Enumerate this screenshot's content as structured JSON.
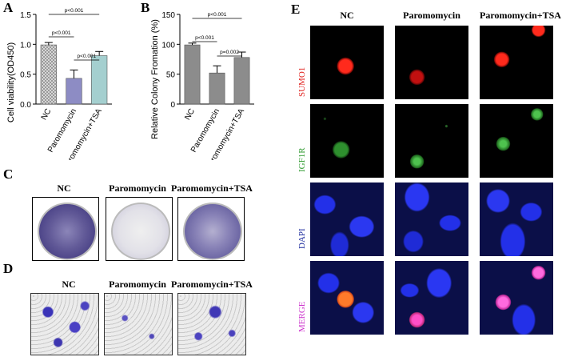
{
  "panels": {
    "A": "A",
    "B": "B",
    "C": "C",
    "D": "D",
    "E": "E"
  },
  "chartA": {
    "chart_data": {
      "type": "bar",
      "categories": [
        "NC",
        "Paromomycin",
        "Paromomycin+TSA"
      ],
      "values": [
        0.99,
        0.43,
        0.81
      ],
      "errors": [
        0.04,
        0.14,
        0.07
      ],
      "ylabel": "Cell viability(OD450)",
      "ylim": [
        0,
        1.5
      ],
      "yticks": [
        "0.0",
        "0.5",
        "1.0",
        "1.5"
      ],
      "tickvals": [
        0,
        0.5,
        1.0,
        1.5
      ],
      "colors": [
        "#bdbdbd",
        "#8d8cc4",
        "#a4cfcf"
      ],
      "pvalues": [
        "p<0.001",
        "p<0.001",
        "p<0.001"
      ]
    }
  },
  "chartB": {
    "chart_data": {
      "type": "bar",
      "categories": [
        "NC",
        "Paromomycin",
        "Paromomycin+TSA"
      ],
      "values": [
        99,
        52,
        78
      ],
      "errors": [
        3,
        12,
        9
      ],
      "ylabel": "Relative Colony Fromation (%)",
      "ylim": [
        0,
        150
      ],
      "yticks": [
        "0",
        "50",
        "100",
        "150"
      ],
      "tickvals": [
        0,
        50,
        100,
        150
      ],
      "colors": [
        "#8c8c8c",
        "#8c8c8c",
        "#8c8c8c"
      ],
      "pvalues": [
        "p<0.001",
        "p<0.001",
        "p=0.002"
      ]
    }
  },
  "panelC": {
    "labels": [
      "NC",
      "Paromomycin",
      "Paromomycin+TSA"
    ]
  },
  "panelD": {
    "labels": [
      "NC",
      "Paromomycin",
      "Paromomycin+TSA"
    ]
  },
  "panelE": {
    "columns": [
      "NC",
      "Paromomycin",
      "Paromomycin+TSA"
    ],
    "rows": [
      "SUMO1",
      "IGF1R",
      "DAPI",
      "MERGE"
    ],
    "row_colors": [
      "#e0201c",
      "#2f9a2f",
      "#1b2a9c",
      "#cc33cc"
    ]
  }
}
